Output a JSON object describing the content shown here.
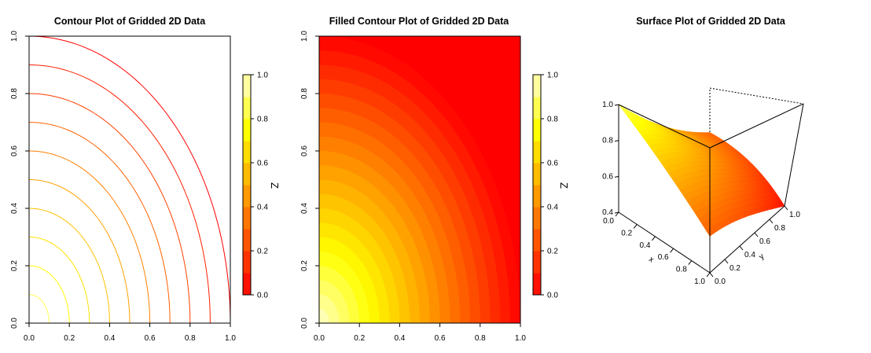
{
  "chart_data": [
    {
      "type": "contour",
      "title": "Contour Plot of Gridded 2D Data",
      "xlim": [
        0,
        1
      ],
      "ylim": [
        0,
        1
      ],
      "x_ticks": [
        "0.0",
        "0.2",
        "0.4",
        "0.6",
        "0.8",
        "1.0"
      ],
      "y_ticks": [
        "0.0",
        "0.2",
        "0.4",
        "0.6",
        "0.8",
        "1.0"
      ],
      "levels": [
        0.0,
        0.1,
        0.2,
        0.3,
        0.4,
        0.5,
        0.6,
        0.7,
        0.8,
        0.9,
        1.0
      ],
      "grid": false,
      "colorbar": {
        "label": "Z",
        "range": [
          0,
          1
        ],
        "ticks": [
          "0.0",
          "0.2",
          "0.4",
          "0.6",
          "0.8",
          "1.0"
        ],
        "palette": "heat",
        "placement": "right"
      }
    },
    {
      "type": "filled-contour",
      "title": "Filled Contour Plot of Gridded 2D Data",
      "xlim": [
        0,
        1
      ],
      "ylim": [
        0,
        1
      ],
      "x_ticks": [
        "0.0",
        "0.2",
        "0.4",
        "0.6",
        "0.8",
        "1.0"
      ],
      "y_ticks": [
        "0.0",
        "0.2",
        "0.4",
        "0.6",
        "0.8",
        "1.0"
      ],
      "levels": [
        0.0,
        0.1,
        0.2,
        0.3,
        0.4,
        0.5,
        0.6,
        0.7,
        0.8,
        0.9,
        1.0
      ],
      "grid": false,
      "colorbar": {
        "label": "Z",
        "range": [
          0,
          1
        ],
        "ticks": [
          "0.0",
          "0.2",
          "0.4",
          "0.6",
          "0.8",
          "1.0"
        ],
        "palette": "heat",
        "placement": "right"
      }
    },
    {
      "type": "surface",
      "title": "Surface Plot of Gridded 2D Data",
      "xlabel": "x",
      "ylabel": "y",
      "x_ticks": [
        "0.0",
        "0.2",
        "0.4",
        "0.6",
        "0.8",
        "1.0"
      ],
      "y_ticks": [
        "0.0",
        "0.2",
        "0.4",
        "0.6",
        "0.8",
        "1.0"
      ],
      "z_ticks": [
        "0.4",
        "0.6",
        "0.8",
        "1.0"
      ],
      "xlim": [
        0,
        1
      ],
      "ylim": [
        0,
        1
      ],
      "zlim": [
        0.4,
        1.0
      ],
      "palette": "heat"
    }
  ]
}
